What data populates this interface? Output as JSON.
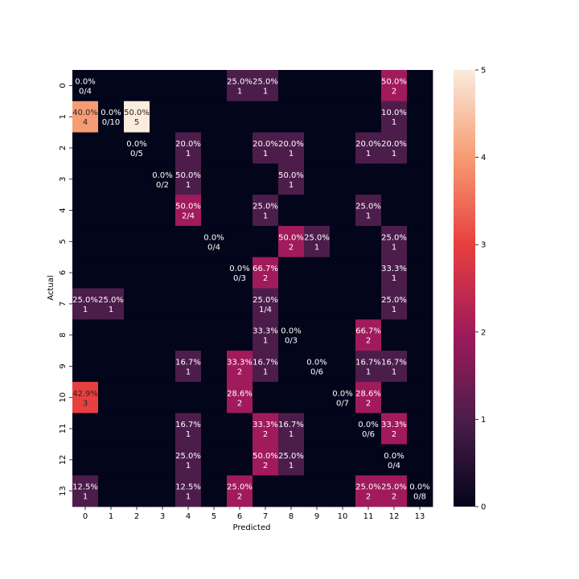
{
  "chart_data": {
    "type": "heatmap",
    "xlabel": "Predicted",
    "ylabel": "Actual",
    "x_categories": [
      "0",
      "1",
      "2",
      "3",
      "4",
      "5",
      "6",
      "7",
      "8",
      "9",
      "10",
      "11",
      "12",
      "13"
    ],
    "y_categories": [
      "0",
      "1",
      "2",
      "3",
      "4",
      "5",
      "6",
      "7",
      "8",
      "9",
      "10",
      "11",
      "12",
      "13"
    ],
    "colorbar": {
      "min": 0,
      "max": 5,
      "ticks": [
        "0",
        "1",
        "2",
        "3",
        "4",
        "5"
      ]
    },
    "values": [
      [
        0,
        0,
        0,
        0,
        0,
        0,
        1,
        1,
        0,
        0,
        0,
        0,
        2,
        0
      ],
      [
        4,
        0,
        5,
        0,
        0,
        0,
        0,
        0,
        0,
        0,
        0,
        0,
        1,
        0
      ],
      [
        0,
        0,
        0,
        0,
        1,
        0,
        0,
        1,
        1,
        0,
        0,
        1,
        1,
        0
      ],
      [
        0,
        0,
        0,
        0,
        1,
        0,
        0,
        0,
        1,
        0,
        0,
        0,
        0,
        0
      ],
      [
        0,
        0,
        0,
        0,
        2,
        0,
        0,
        1,
        0,
        0,
        0,
        1,
        0,
        0
      ],
      [
        0,
        0,
        0,
        0,
        0,
        0,
        0,
        0,
        2,
        1,
        0,
        0,
        1,
        0
      ],
      [
        0,
        0,
        0,
        0,
        0,
        0,
        0,
        2,
        0,
        0,
        0,
        0,
        1,
        0
      ],
      [
        1,
        1,
        0,
        0,
        0,
        0,
        0,
        1,
        0,
        0,
        0,
        0,
        1,
        0
      ],
      [
        0,
        0,
        0,
        0,
        0,
        0,
        0,
        1,
        0,
        0,
        0,
        2,
        0,
        0
      ],
      [
        0,
        0,
        0,
        0,
        1,
        0,
        2,
        1,
        0,
        0,
        0,
        1,
        1,
        0
      ],
      [
        3,
        0,
        0,
        0,
        0,
        0,
        2,
        0,
        0,
        0,
        0,
        2,
        0,
        0
      ],
      [
        0,
        0,
        0,
        0,
        1,
        0,
        0,
        2,
        1,
        0,
        0,
        0,
        2,
        0
      ],
      [
        0,
        0,
        0,
        0,
        1,
        0,
        0,
        2,
        1,
        0,
        0,
        0,
        0,
        0
      ],
      [
        1,
        0,
        0,
        0,
        1,
        0,
        2,
        0,
        0,
        0,
        0,
        2,
        2,
        0
      ]
    ],
    "annotations": [
      [
        [
          "0.0%",
          "0/4"
        ],
        null,
        null,
        null,
        null,
        null,
        [
          "25.0%",
          "1"
        ],
        [
          "25.0%",
          "1"
        ],
        null,
        null,
        null,
        null,
        [
          "50.0%",
          "2"
        ],
        null
      ],
      [
        [
          "40.0%",
          "4"
        ],
        [
          "0.0%",
          "0/10"
        ],
        [
          "50.0%",
          "5"
        ],
        null,
        null,
        null,
        null,
        null,
        null,
        null,
        null,
        null,
        [
          "10.0%",
          "1"
        ],
        null
      ],
      [
        null,
        null,
        [
          "0.0%",
          "0/5"
        ],
        null,
        [
          "20.0%",
          "1"
        ],
        null,
        null,
        [
          "20.0%",
          "1"
        ],
        [
          "20.0%",
          "1"
        ],
        null,
        null,
        [
          "20.0%",
          "1"
        ],
        [
          "20.0%",
          "1"
        ],
        null
      ],
      [
        null,
        null,
        null,
        [
          "0.0%",
          "0/2"
        ],
        [
          "50.0%",
          "1"
        ],
        null,
        null,
        null,
        [
          "50.0%",
          "1"
        ],
        null,
        null,
        null,
        null,
        null
      ],
      [
        null,
        null,
        null,
        null,
        [
          "50.0%",
          "2/4"
        ],
        null,
        null,
        [
          "25.0%",
          "1"
        ],
        null,
        null,
        null,
        [
          "25.0%",
          "1"
        ],
        null,
        null
      ],
      [
        null,
        null,
        null,
        null,
        null,
        [
          "0.0%",
          "0/4"
        ],
        null,
        null,
        [
          "50.0%",
          "2"
        ],
        [
          "25.0%",
          "1"
        ],
        null,
        null,
        [
          "25.0%",
          "1"
        ],
        null
      ],
      [
        null,
        null,
        null,
        null,
        null,
        null,
        [
          "0.0%",
          "0/3"
        ],
        [
          "66.7%",
          "2"
        ],
        null,
        null,
        null,
        null,
        [
          "33.3%",
          "1"
        ],
        null
      ],
      [
        [
          "25.0%",
          "1"
        ],
        [
          "25.0%",
          "1"
        ],
        null,
        null,
        null,
        null,
        null,
        [
          "25.0%",
          "1/4"
        ],
        null,
        null,
        null,
        null,
        [
          "25.0%",
          "1"
        ],
        null
      ],
      [
        null,
        null,
        null,
        null,
        null,
        null,
        null,
        [
          "33.3%",
          "1"
        ],
        [
          "0.0%",
          "0/3"
        ],
        null,
        null,
        [
          "66.7%",
          "2"
        ],
        null,
        null
      ],
      [
        null,
        null,
        null,
        null,
        [
          "16.7%",
          "1"
        ],
        null,
        [
          "33.3%",
          "2"
        ],
        [
          "16.7%",
          "1"
        ],
        null,
        [
          "0.0%",
          "0/6"
        ],
        null,
        [
          "16.7%",
          "1"
        ],
        [
          "16.7%",
          "1"
        ],
        null
      ],
      [
        [
          "42.9%",
          "3"
        ],
        null,
        null,
        null,
        null,
        null,
        [
          "28.6%",
          "2"
        ],
        null,
        null,
        null,
        [
          "0.0%",
          "0/7"
        ],
        [
          "28.6%",
          "2"
        ],
        null,
        null
      ],
      [
        null,
        null,
        null,
        null,
        [
          "16.7%",
          "1"
        ],
        null,
        null,
        [
          "33.3%",
          "2"
        ],
        [
          "16.7%",
          "1"
        ],
        null,
        null,
        [
          "0.0%",
          "0/6"
        ],
        [
          "33.3%",
          "2"
        ],
        null
      ],
      [
        null,
        null,
        null,
        null,
        [
          "25.0%",
          "1"
        ],
        null,
        null,
        [
          "50.0%",
          "2"
        ],
        [
          "25.0%",
          "1"
        ],
        null,
        null,
        null,
        [
          "0.0%",
          "0/4"
        ],
        null
      ],
      [
        [
          "12.5%",
          "1"
        ],
        null,
        null,
        null,
        [
          "12.5%",
          "1"
        ],
        null,
        [
          "25.0%",
          "2"
        ],
        null,
        null,
        null,
        null,
        [
          "25.0%",
          "2"
        ],
        [
          "25.0%",
          "2"
        ],
        [
          "0.0%",
          "0/8"
        ]
      ]
    ]
  }
}
